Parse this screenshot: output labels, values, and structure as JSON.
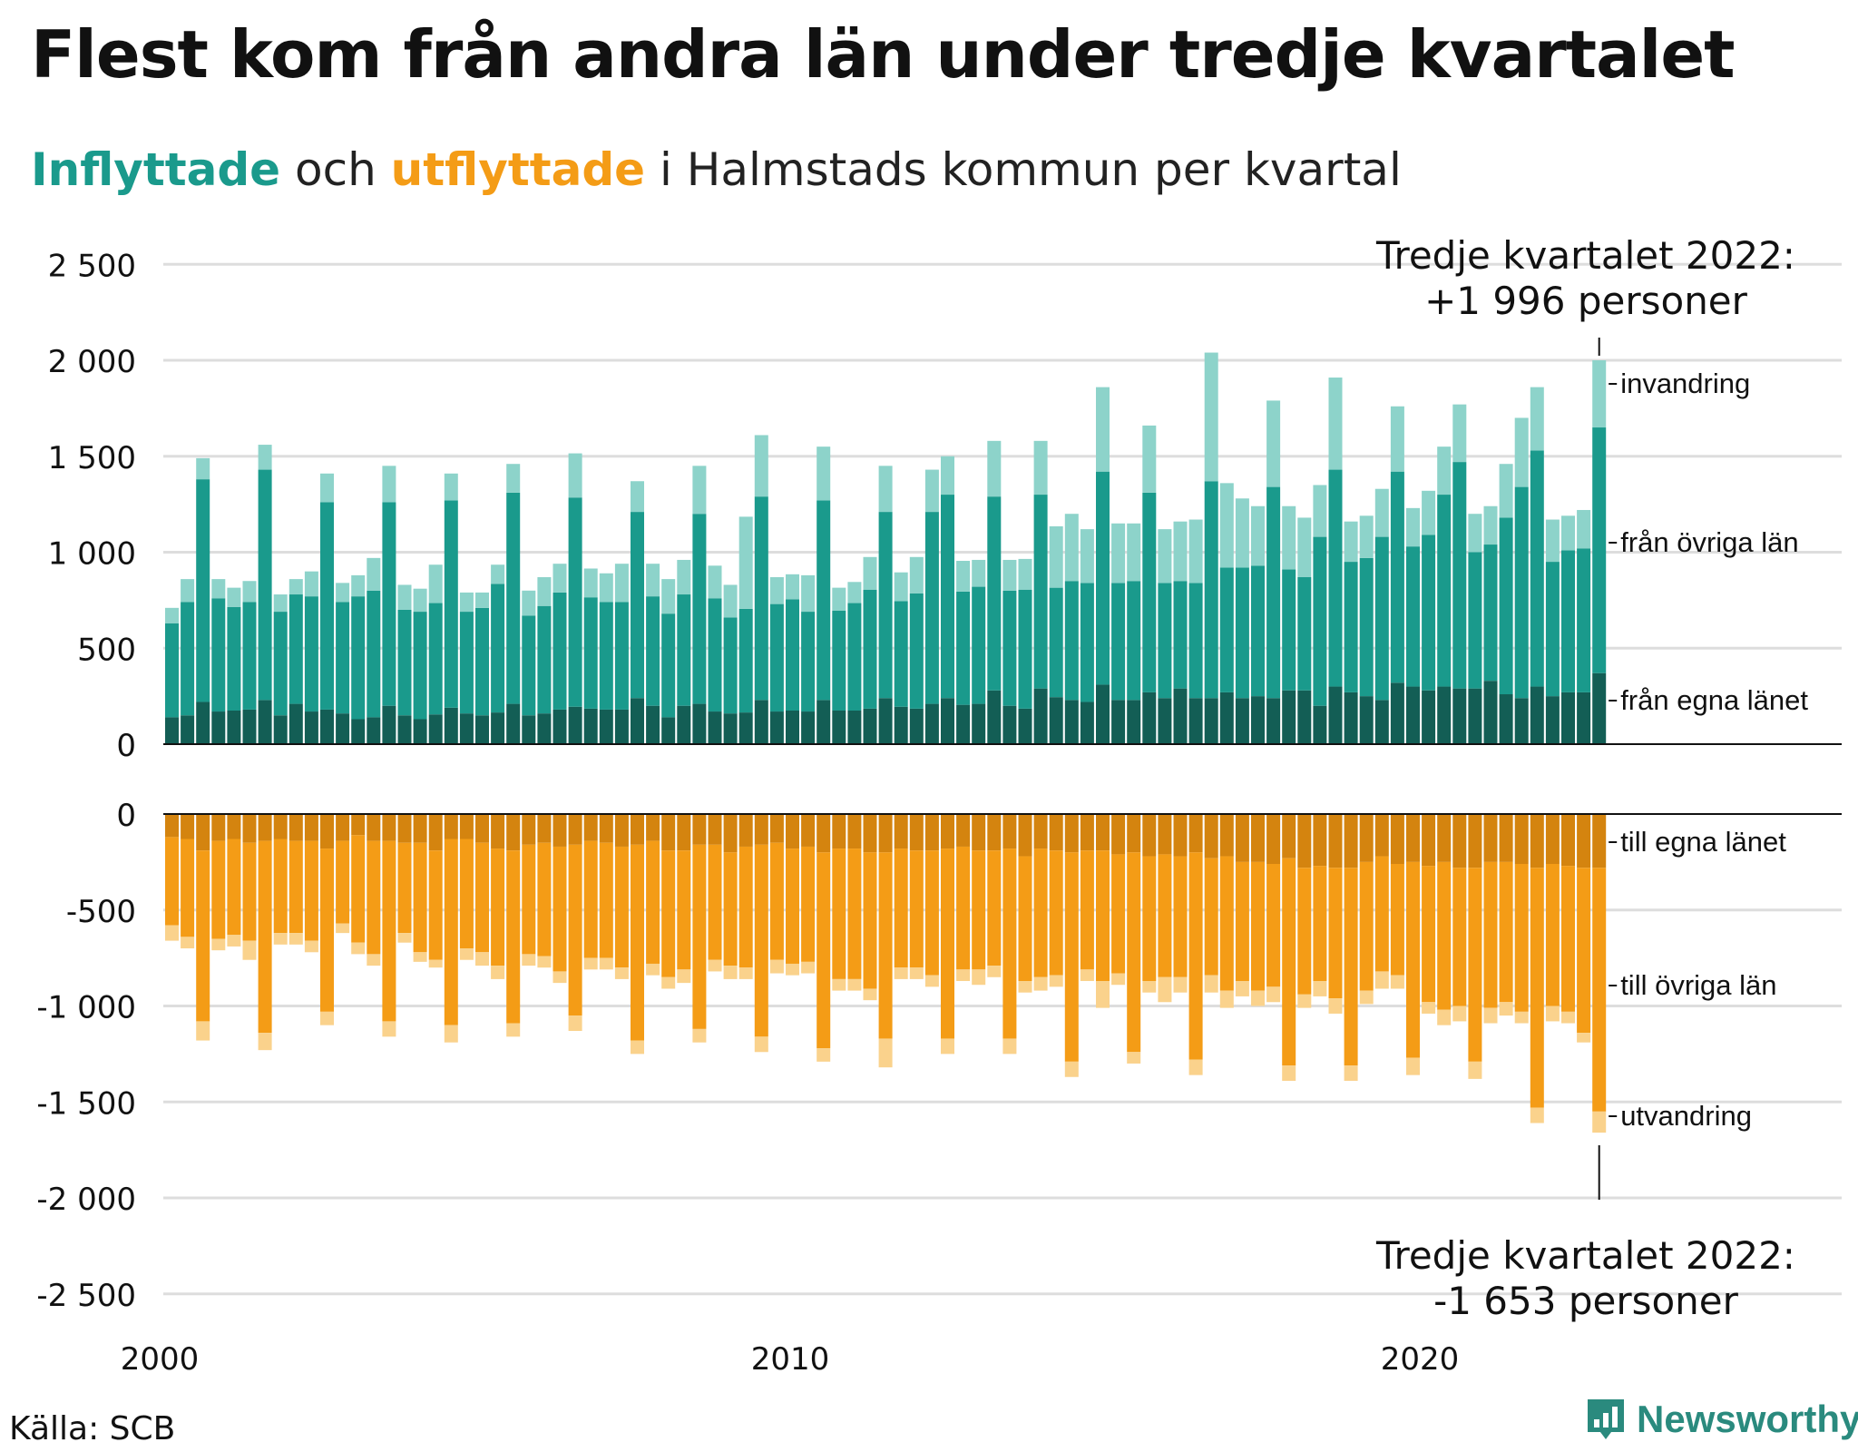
{
  "title": "Flest kom från andra län under tredje kvartalet",
  "subtitle": {
    "in_word": "Inflyttade",
    "mid": " och ",
    "out_word": "utflyttade",
    "rest": " i Halmstads kommun per kvartal"
  },
  "source": "Källa: SCB",
  "brand": "Newsworthy",
  "colors": {
    "in_own": "#135e55",
    "in_other": "#1a9a8c",
    "in_imm": "#8dd3ca",
    "out_own": "#d4840f",
    "out_other": "#f49c16",
    "out_em": "#fad28c",
    "grid": "#dddddd",
    "brand": "#2a8a7e"
  },
  "chart_data": {
    "type": "bar",
    "stacked": true,
    "x_ticks": [
      "2000",
      "2010",
      "2020"
    ],
    "top": {
      "y_ticks": [
        "2 500",
        "2 000",
        "1 500",
        "1 000",
        "500",
        "0"
      ],
      "ylim": [
        0,
        2500
      ],
      "series": [
        {
          "name": "från egna länet",
          "values": [
            140,
            150,
            220,
            170,
            175,
            180,
            230,
            150,
            210,
            170,
            180,
            160,
            130,
            140,
            200,
            150,
            130,
            155,
            190,
            160,
            150,
            165,
            210,
            150,
            160,
            180,
            195,
            185,
            180,
            180,
            240,
            200,
            140,
            200,
            210,
            170,
            160,
            165,
            230,
            170,
            175,
            170,
            230,
            175,
            175,
            185,
            240,
            195,
            185,
            210,
            240,
            205,
            210,
            280,
            200,
            185,
            290,
            245,
            230,
            220,
            310,
            230,
            230,
            270,
            240,
            290,
            240,
            240,
            270,
            240,
            250,
            240,
            280,
            280,
            200,
            300,
            270,
            250,
            230,
            320,
            300,
            280,
            300,
            290,
            290,
            330,
            260,
            240,
            300,
            250,
            270,
            270,
            370
          ]
        },
        {
          "name": "från övriga län",
          "values": [
            490,
            590,
            1160,
            590,
            540,
            560,
            1200,
            540,
            570,
            600,
            1080,
            580,
            640,
            660,
            1060,
            550,
            560,
            580,
            1080,
            530,
            560,
            670,
            1100,
            520,
            560,
            610,
            1090,
            580,
            560,
            560,
            970,
            570,
            540,
            580,
            990,
            590,
            500,
            540,
            1060,
            560,
            580,
            520,
            1040,
            520,
            560,
            620,
            970,
            550,
            600,
            1000,
            1060,
            590,
            610,
            1010,
            600,
            620,
            1010,
            570,
            620,
            620,
            1110,
            610,
            620,
            1040,
            600,
            560,
            600,
            1130,
            650,
            680,
            680,
            1100,
            630,
            590,
            880,
            1130,
            680,
            720,
            850,
            1100,
            730,
            810,
            1000,
            1180,
            710,
            710,
            920,
            1100,
            1230,
            700,
            740,
            750,
            1280
          ]
        },
        {
          "name": "invandring",
          "values": [
            80,
            120,
            110,
            100,
            100,
            110,
            130,
            90,
            80,
            130,
            150,
            100,
            110,
            170,
            190,
            130,
            120,
            200,
            140,
            100,
            80,
            100,
            150,
            130,
            150,
            150,
            230,
            150,
            150,
            200,
            160,
            170,
            180,
            180,
            250,
            170,
            170,
            480,
            320,
            140,
            130,
            190,
            280,
            120,
            110,
            170,
            240,
            150,
            190,
            220,
            200,
            160,
            140,
            290,
            160,
            160,
            280,
            320,
            350,
            280,
            440,
            310,
            300,
            350,
            280,
            310,
            330,
            670,
            440,
            360,
            310,
            450,
            330,
            310,
            270,
            480,
            210,
            220,
            250,
            340,
            200,
            230,
            250,
            300,
            200,
            200,
            280,
            360,
            330,
            220,
            180,
            200,
            350
          ]
        }
      ]
    },
    "bottom": {
      "y_ticks": [
        "0",
        "-500",
        "-1 000",
        "-1 500",
        "-2 000",
        "-2 500"
      ],
      "ylim": [
        -2500,
        0
      ],
      "series": [
        {
          "name": "till egna länet",
          "values": [
            -120,
            -130,
            -190,
            -140,
            -130,
            -150,
            -140,
            -130,
            -140,
            -140,
            -180,
            -140,
            -110,
            -140,
            -140,
            -150,
            -150,
            -190,
            -130,
            -130,
            -150,
            -180,
            -190,
            -160,
            -150,
            -170,
            -160,
            -140,
            -150,
            -170,
            -160,
            -140,
            -190,
            -190,
            -160,
            -160,
            -200,
            -170,
            -160,
            -150,
            -180,
            -170,
            -200,
            -180,
            -180,
            -200,
            -200,
            -180,
            -190,
            -190,
            -180,
            -170,
            -190,
            -190,
            -180,
            -220,
            -180,
            -190,
            -200,
            -190,
            -190,
            -210,
            -200,
            -220,
            -210,
            -220,
            -200,
            -230,
            -220,
            -250,
            -250,
            -260,
            -230,
            -280,
            -270,
            -280,
            -280,
            -250,
            -220,
            -260,
            -250,
            -270,
            -250,
            -280,
            -280,
            -250,
            -250,
            -260,
            -280,
            -260,
            -270,
            -280,
            -280
          ]
        },
        {
          "name": "till övriga län",
          "values": [
            -460,
            -510,
            -890,
            -510,
            -500,
            -510,
            -1000,
            -490,
            -480,
            -520,
            -850,
            -430,
            -560,
            -590,
            -940,
            -470,
            -570,
            -570,
            -970,
            -570,
            -570,
            -610,
            -900,
            -570,
            -590,
            -650,
            -890,
            -610,
            -600,
            -630,
            -1020,
            -640,
            -660,
            -620,
            -960,
            -600,
            -590,
            -630,
            -1000,
            -610,
            -600,
            -600,
            -1020,
            -680,
            -680,
            -710,
            -970,
            -620,
            -610,
            -650,
            -990,
            -640,
            -620,
            -600,
            -990,
            -650,
            -670,
            -650,
            -1090,
            -620,
            -680,
            -620,
            -1040,
            -650,
            -640,
            -630,
            -1080,
            -610,
            -700,
            -620,
            -670,
            -640,
            -1080,
            -660,
            -600,
            -680,
            -1030,
            -670,
            -600,
            -580,
            -1020,
            -710,
            -770,
            -720,
            -1010,
            -760,
            -730,
            -770,
            -1250,
            -740,
            -760,
            -860,
            -1270
          ]
        },
        {
          "name": "utvandring",
          "values": [
            -80,
            -60,
            -100,
            -60,
            -60,
            -100,
            -90,
            -60,
            -60,
            -60,
            -70,
            -50,
            -60,
            -60,
            -80,
            -50,
            -50,
            -40,
            -90,
            -60,
            -70,
            -70,
            -70,
            -60,
            -60,
            -60,
            -80,
            -60,
            -60,
            -60,
            -70,
            -60,
            -60,
            -70,
            -70,
            -60,
            -70,
            -60,
            -80,
            -70,
            -60,
            -60,
            -70,
            -60,
            -60,
            -60,
            -150,
            -60,
            -60,
            -60,
            -80,
            -60,
            -80,
            -60,
            -80,
            -60,
            -70,
            -60,
            -80,
            -60,
            -140,
            -60,
            -60,
            -60,
            -130,
            -80,
            -80,
            -90,
            -90,
            -80,
            -80,
            -80,
            -80,
            -70,
            -80,
            -80,
            -80,
            -70,
            -90,
            -70,
            -90,
            -60,
            -80,
            -80,
            -90,
            -80,
            -70,
            -60,
            -80,
            -80,
            -60,
            -50,
            -110
          ]
        }
      ]
    },
    "labels_right_top": [
      "invandring",
      "från övriga län",
      "från egna länet"
    ],
    "labels_right_bottom": [
      "till egna länet",
      "till övriga län",
      "utvandring"
    ],
    "annotation_top": [
      "Tredje kvartalet 2022:",
      "+1 996 personer"
    ],
    "annotation_bottom": [
      "Tredje kvartalet 2022:",
      "-1 653 personer"
    ]
  }
}
